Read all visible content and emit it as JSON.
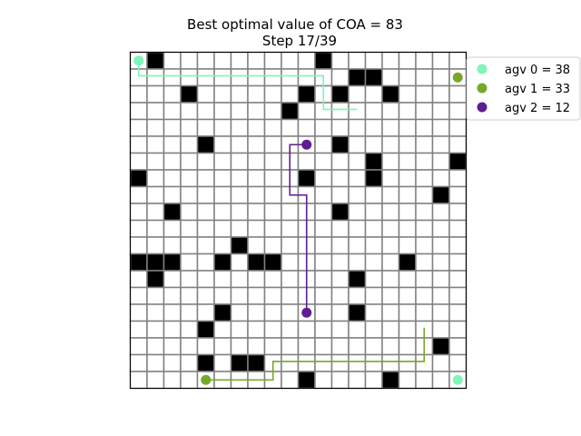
{
  "chart_data": {
    "type": "scatter",
    "title": "Best optimal value of COA = 83",
    "subtitle": "Step 17/39",
    "grid": true,
    "grid_size": [
      20,
      20
    ],
    "xlim": [
      0,
      20
    ],
    "ylim": [
      0,
      20
    ],
    "obstacles": [
      [
        1,
        0
      ],
      [
        11,
        0
      ],
      [
        13,
        1
      ],
      [
        14,
        1
      ],
      [
        3,
        2
      ],
      [
        10,
        2
      ],
      [
        12,
        2
      ],
      [
        15,
        2
      ],
      [
        9,
        3
      ],
      [
        4,
        5
      ],
      [
        12,
        5
      ],
      [
        14,
        6
      ],
      [
        19,
        6
      ],
      [
        0,
        7
      ],
      [
        10,
        7
      ],
      [
        14,
        7
      ],
      [
        18,
        8
      ],
      [
        2,
        9
      ],
      [
        12,
        9
      ],
      [
        6,
        11
      ],
      [
        0,
        12
      ],
      [
        1,
        12
      ],
      [
        2,
        12
      ],
      [
        5,
        12
      ],
      [
        7,
        12
      ],
      [
        8,
        12
      ],
      [
        16,
        12
      ],
      [
        1,
        13
      ],
      [
        13,
        13
      ],
      [
        5,
        15
      ],
      [
        13,
        15
      ],
      [
        4,
        16
      ],
      [
        18,
        17
      ],
      [
        4,
        18
      ],
      [
        6,
        18
      ],
      [
        7,
        18
      ],
      [
        10,
        19
      ],
      [
        15,
        19
      ]
    ],
    "series": [
      {
        "name": "agv 0 = 38",
        "color": "#7ff5b8",
        "start": [
          0.5,
          0.5
        ],
        "goal": [
          19.5,
          19.5
        ],
        "path": [
          [
            0.5,
            0.5
          ],
          [
            0.5,
            1.4
          ],
          [
            11.5,
            1.4
          ],
          [
            11.5,
            3.4
          ],
          [
            13.5,
            3.4
          ]
        ]
      },
      {
        "name": "agv 1 = 33",
        "color": "#76a82a",
        "start": [
          4.5,
          19.5
        ],
        "goal": [
          19.5,
          1.5
        ],
        "path": [
          [
            4.5,
            19.5
          ],
          [
            8.5,
            19.5
          ],
          [
            8.5,
            18.5
          ],
          [
            8.5,
            18.4
          ],
          [
            17.5,
            18.4
          ],
          [
            17.5,
            16.4
          ]
        ]
      },
      {
        "name": "agv 2 = 12",
        "color": "#5e1e92",
        "start": [
          10.5,
          15.5
        ],
        "goal": [
          10.5,
          5.5
        ],
        "path": [
          [
            10.5,
            15.5
          ],
          [
            10.5,
            8.5
          ],
          [
            9.5,
            8.5
          ],
          [
            9.5,
            5.5
          ],
          [
            10.5,
            5.5
          ]
        ]
      }
    ],
    "legend_position": "top-right"
  }
}
